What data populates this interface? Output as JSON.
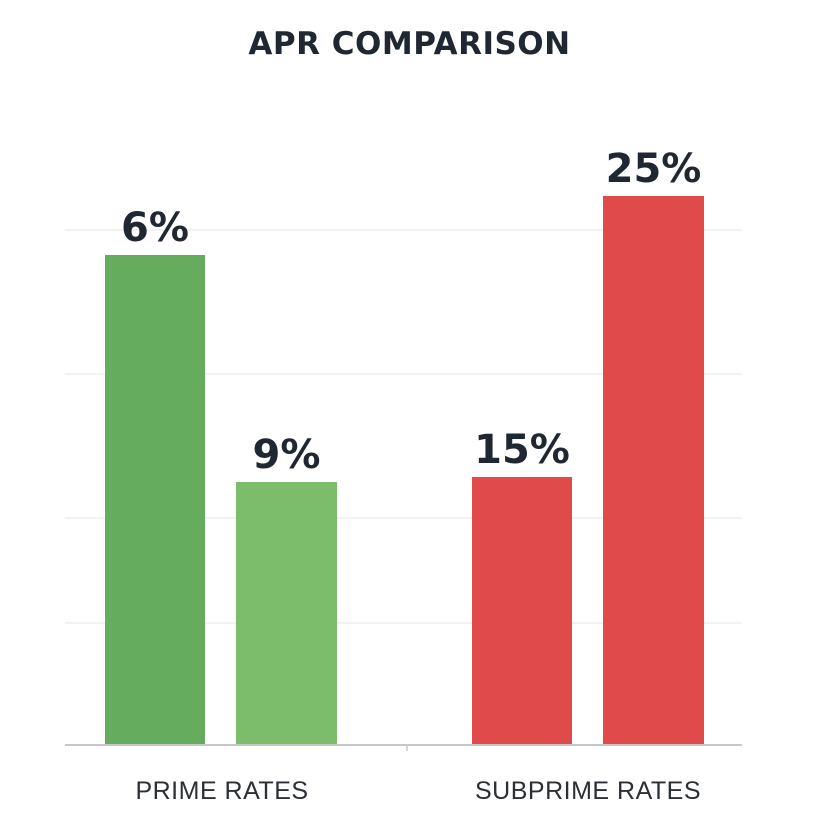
{
  "chart_data": {
    "type": "bar",
    "title": "APR COMPARISON",
    "categories": [
      "PRIME RATES",
      "SUBPRIME RATES"
    ],
    "bars": [
      {
        "category": "PRIME RATES",
        "label": "6%",
        "color": "#66ac5f"
      },
      {
        "category": "PRIME RATES",
        "label": "9%",
        "color": "#7bbd6a"
      },
      {
        "category": "SUBPRIME RATES",
        "label": "15%",
        "color": "#e04a4a"
      },
      {
        "category": "SUBPRIME RATES",
        "label": "25%",
        "color": "#e04a4a"
      }
    ],
    "grid": true,
    "legend": "none"
  }
}
